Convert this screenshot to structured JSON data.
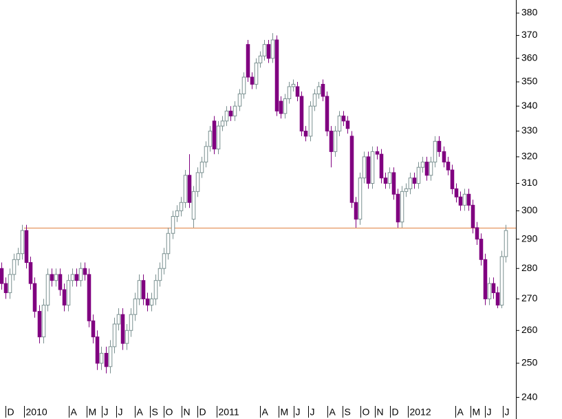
{
  "chart_data": {
    "type": "candlestick",
    "log_scale": true,
    "up_color": "#7a9090",
    "down_color": "#800080",
    "reference_line": {
      "value": 294,
      "color": "#e08040"
    },
    "xlim": [
      -0.33,
      123.4
    ],
    "xticks": [
      {
        "value": 1.0,
        "label": "D"
      },
      {
        "value": 5.4,
        "label": "2010"
      },
      {
        "value": 16.2,
        "label": "A"
      },
      {
        "value": 20.5,
        "label": "M"
      },
      {
        "value": 24.1,
        "label": "J"
      },
      {
        "value": 27.6,
        "label": "J"
      },
      {
        "value": 32.0,
        "label": "A"
      },
      {
        "value": 35.6,
        "label": "S"
      },
      {
        "value": 38.9,
        "label": "O"
      },
      {
        "value": 43.2,
        "label": "N"
      },
      {
        "value": 47.0,
        "label": "D"
      },
      {
        "value": 51.7,
        "label": "2011"
      },
      {
        "value": 62.0,
        "label": "A"
      },
      {
        "value": 66.5,
        "label": "M"
      },
      {
        "value": 70.1,
        "label": "J"
      },
      {
        "value": 73.6,
        "label": "J"
      },
      {
        "value": 78.2,
        "label": "A"
      },
      {
        "value": 81.8,
        "label": "S"
      },
      {
        "value": 86.1,
        "label": "O"
      },
      {
        "value": 89.6,
        "label": "N"
      },
      {
        "value": 93.2,
        "label": "D"
      },
      {
        "value": 97.5,
        "label": "2012"
      },
      {
        "value": 108.9,
        "label": "A"
      },
      {
        "value": 112.5,
        "label": "M"
      },
      {
        "value": 116.0,
        "label": "J"
      },
      {
        "value": 120.3,
        "label": "J"
      }
    ],
    "ylim": [
      236,
      386
    ],
    "yticks": [
      240,
      250,
      260,
      270,
      280,
      290,
      300,
      310,
      320,
      330,
      340,
      350,
      360,
      370,
      380
    ],
    "open": [
      280,
      275,
      272,
      278,
      283,
      285,
      293,
      282,
      275,
      266,
      258,
      268,
      278,
      276,
      278,
      273,
      268,
      276,
      278,
      276,
      280,
      278,
      263,
      258,
      250,
      253,
      249,
      255,
      262,
      265,
      256,
      260,
      265,
      270,
      276,
      270,
      268,
      270,
      276,
      280,
      285,
      292,
      298,
      300,
      303,
      313,
      297,
      307,
      314,
      318,
      324,
      334,
      323,
      332,
      334,
      338,
      336,
      340,
      345,
      366,
      352,
      349,
      358,
      361,
      366,
      360,
      368,
      342,
      337,
      343,
      348,
      348,
      344,
      330,
      328,
      340,
      345,
      349,
      344,
      330,
      322,
      330,
      336,
      334,
      328,
      303,
      297,
      312,
      320,
      310,
      322,
      321,
      312,
      310,
      314,
      306,
      296,
      307,
      308,
      312,
      310,
      316,
      318,
      313,
      318,
      326,
      322,
      318,
      315,
      308,
      305,
      302,
      306,
      302,
      294,
      290,
      283,
      270,
      275,
      272,
      268,
      284
    ],
    "high": [
      282,
      277,
      280,
      285,
      287,
      295,
      295,
      284,
      277,
      268,
      270,
      280,
      280,
      280,
      280,
      275,
      278,
      280,
      280,
      282,
      282,
      280,
      265,
      260,
      255,
      255,
      257,
      264,
      267,
      267,
      262,
      267,
      272,
      278,
      278,
      272,
      272,
      278,
      282,
      287,
      294,
      300,
      302,
      305,
      315,
      321,
      309,
      316,
      320,
      326,
      332,
      336,
      334,
      336,
      340,
      340,
      342,
      347,
      354,
      368,
      354,
      360,
      363,
      368,
      368,
      371,
      370,
      344,
      345,
      350,
      351,
      350,
      346,
      332,
      342,
      347,
      350,
      351,
      346,
      332,
      332,
      338,
      338,
      336,
      330,
      305,
      314,
      322,
      322,
      324,
      324,
      323,
      314,
      316,
      316,
      308,
      309,
      310,
      314,
      314,
      318,
      320,
      320,
      320,
      328,
      328,
      324,
      320,
      317,
      310,
      307,
      308,
      308,
      304,
      296,
      292,
      285,
      277,
      277,
      274,
      286,
      295
    ],
    "low": [
      273,
      270,
      270,
      276,
      281,
      283,
      280,
      273,
      264,
      256,
      256,
      266,
      274,
      274,
      271,
      266,
      266,
      274,
      274,
      274,
      276,
      261,
      256,
      248,
      248,
      247,
      247,
      253,
      260,
      254,
      254,
      258,
      263,
      268,
      268,
      266,
      266,
      268,
      274,
      278,
      283,
      290,
      296,
      298,
      301,
      301,
      294,
      305,
      312,
      316,
      322,
      321,
      321,
      330,
      332,
      334,
      334,
      338,
      343,
      350,
      347,
      347,
      356,
      359,
      358,
      358,
      336,
      335,
      335,
      341,
      346,
      342,
      328,
      326,
      326,
      338,
      343,
      342,
      328,
      316,
      320,
      328,
      332,
      329,
      301,
      294,
      295,
      310,
      308,
      308,
      319,
      310,
      308,
      308,
      304,
      294,
      294,
      305,
      306,
      308,
      308,
      314,
      311,
      311,
      316,
      320,
      316,
      313,
      306,
      303,
      300,
      300,
      300,
      292,
      288,
      281,
      268,
      268,
      270,
      267,
      267,
      282
    ],
    "close": [
      275,
      272,
      278,
      283,
      285,
      293,
      282,
      275,
      266,
      258,
      268,
      278,
      276,
      278,
      273,
      268,
      276,
      278,
      276,
      280,
      278,
      263,
      258,
      250,
      253,
      249,
      255,
      262,
      265,
      256,
      260,
      265,
      270,
      276,
      270,
      268,
      270,
      276,
      280,
      285,
      292,
      298,
      300,
      303,
      313,
      303,
      307,
      314,
      318,
      324,
      330,
      323,
      332,
      334,
      338,
      336,
      340,
      345,
      352,
      352,
      349,
      358,
      361,
      366,
      360,
      368,
      338,
      337,
      343,
      348,
      349,
      344,
      330,
      328,
      340,
      345,
      348,
      344,
      330,
      322,
      330,
      336,
      334,
      331,
      303,
      297,
      312,
      320,
      310,
      322,
      321,
      312,
      310,
      314,
      306,
      296,
      307,
      308,
      312,
      310,
      316,
      318,
      313,
      318,
      326,
      322,
      318,
      315,
      308,
      305,
      302,
      306,
      302,
      294,
      290,
      283,
      270,
      275,
      272,
      268,
      284,
      293
    ]
  }
}
